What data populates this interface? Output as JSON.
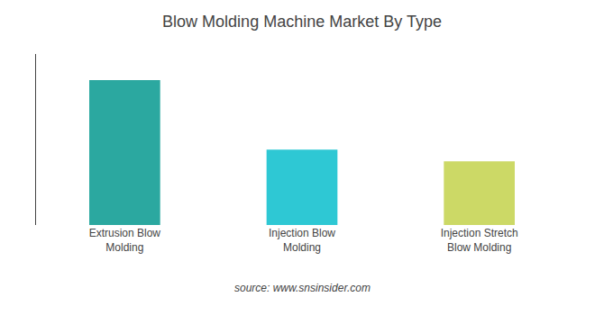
{
  "chart_data": {
    "type": "bar",
    "title": "Blow Molding Machine Market By Type",
    "categories": [
      "Extrusion Blow\nMolding",
      "Injection Blow\nMolding",
      "Injection Stretch\nBlow Molding"
    ],
    "values": [
      100,
      52,
      44
    ],
    "colors": [
      "#2ba8a0",
      "#2ec8d4",
      "#ccd966"
    ],
    "ylim": [
      0,
      118
    ],
    "grid": false,
    "tick_labels": "x",
    "annotations": [
      "source: www.snsinsider.com"
    ]
  }
}
